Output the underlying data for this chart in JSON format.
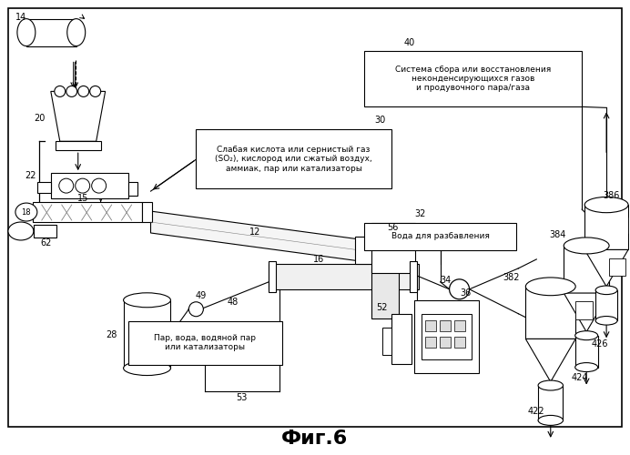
{
  "title": "Фиг.6",
  "title_fontsize": 16,
  "background_color": "#ffffff",
  "tb30_text": "Слабая кислота или сернистый газ\n(SO₂), кислород или сжатый воздух,\nаммиак, пар или катализаторы",
  "tb40_text": "Система сбора или восстановления\nнеконденсирующихся газов\nи продувочного пара/газа",
  "tb32_text": "Вода для разбавления",
  "tb53_text": "Пар, вода, водяной пар\nили катализаторы"
}
